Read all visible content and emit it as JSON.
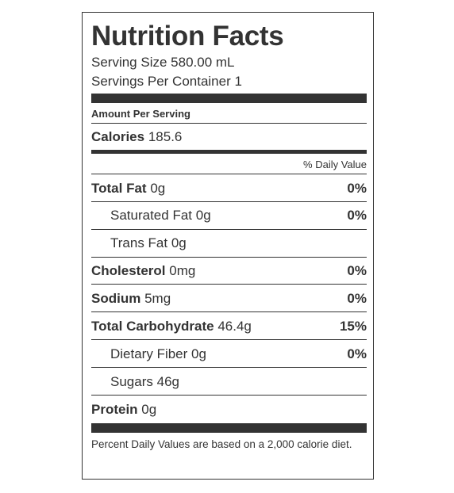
{
  "label": {
    "title": "Nutrition Facts",
    "serving_size": "Serving Size 580.00 mL",
    "servings_per_container": "Servings Per Container 1",
    "amount_per_serving": "Amount Per Serving",
    "calories": {
      "name": "Calories",
      "value": "185.6"
    },
    "daily_value_header": "% Daily Value",
    "nutrients": [
      {
        "name": "Total Fat",
        "amount": "0g",
        "dv": "0%"
      },
      {
        "name": "Saturated Fat",
        "amount": "0g",
        "dv": "0%"
      },
      {
        "name": "Trans Fat",
        "amount": "0g",
        "dv": ""
      },
      {
        "name": "Cholesterol",
        "amount": "0mg",
        "dv": "0%"
      },
      {
        "name": "Sodium",
        "amount": "5mg",
        "dv": "0%"
      },
      {
        "name": "Total Carbohydrate",
        "amount": "46.4g",
        "dv": "15%"
      },
      {
        "name": "Dietary Fiber",
        "amount": "0g",
        "dv": "0%"
      },
      {
        "name": "Sugars",
        "amount": "46g",
        "dv": ""
      },
      {
        "name": "Protein",
        "amount": "0g",
        "dv": ""
      }
    ],
    "footnote": "Percent Daily Values are based on a 2,000 calorie diet."
  }
}
